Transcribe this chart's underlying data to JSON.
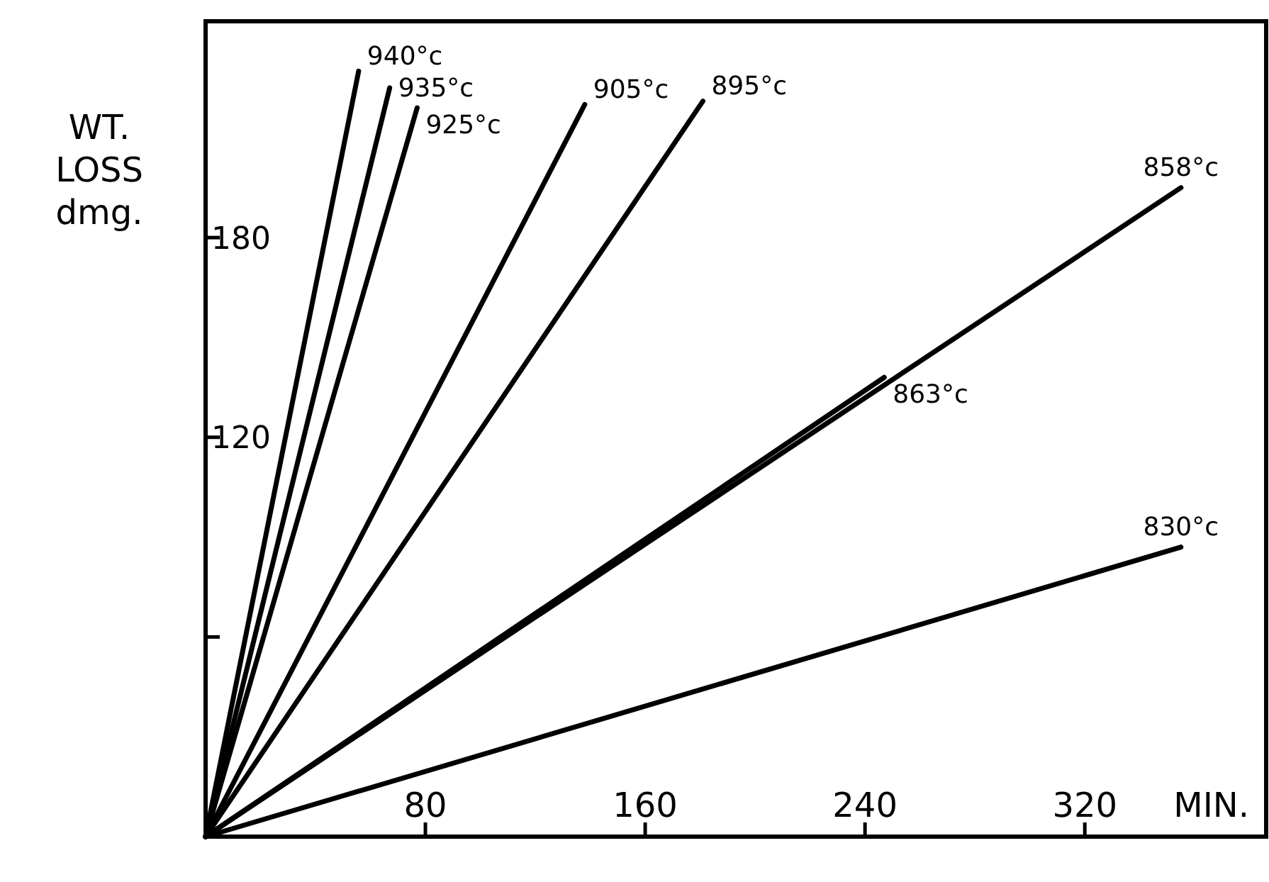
{
  "chart_data": {
    "type": "line",
    "ylabel": "WT. LOSS dmg.",
    "xlabel": "MIN.",
    "xlim": [
      0,
      386
    ],
    "ylim": [
      0,
      245
    ],
    "xticks": [
      80,
      160,
      240,
      320
    ],
    "yticks": [
      {
        "value": 60,
        "label": null
      },
      120,
      180
    ],
    "marker": "none",
    "line_style": "solid",
    "series": [
      {
        "name": "940°c",
        "color": "#000000",
        "x": [
          0,
          55.7
        ],
        "values": [
          0,
          230
        ]
      },
      {
        "name": "935°c",
        "color": "#000000",
        "x": [
          0,
          67
        ],
        "values": [
          0,
          225
        ]
      },
      {
        "name": "925°c",
        "color": "#000000",
        "x": [
          0,
          77
        ],
        "values": [
          0,
          219
        ]
      },
      {
        "name": "905°c",
        "color": "#000000",
        "x": [
          0,
          138
        ],
        "values": [
          0,
          220
        ]
      },
      {
        "name": "895°c",
        "color": "#000000",
        "x": [
          0,
          181
        ],
        "values": [
          0,
          221
        ]
      },
      {
        "name": "863°c",
        "color": "#000000",
        "x": [
          0,
          247
        ],
        "values": [
          0,
          138
        ]
      },
      {
        "name": "858°c",
        "color": "#000000",
        "x": [
          0,
          355
        ],
        "values": [
          0,
          195
        ]
      },
      {
        "name": "830°c",
        "color": "#000000",
        "x": [
          0,
          355
        ],
        "values": [
          0,
          87
        ]
      }
    ]
  }
}
